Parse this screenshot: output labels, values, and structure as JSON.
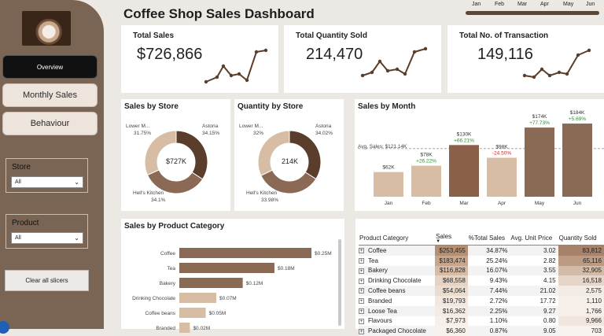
{
  "app": {
    "title": "Coffee Shop Sales Dashboard"
  },
  "sidebar": {
    "overview": "Overview",
    "monthly": "Monthly Sales",
    "behaviour": "Behaviour",
    "store_slicer": {
      "title": "Store",
      "value": "All"
    },
    "product_slicer": {
      "title": "Product",
      "value": "All"
    },
    "clear": "Clear all slicers"
  },
  "timeline": {
    "months": [
      "Jan",
      "Feb",
      "Mar",
      "Apr",
      "May",
      "Jun"
    ]
  },
  "kpis": [
    {
      "label": "Total Sales",
      "value": "$726,866"
    },
    {
      "label": "Total Quantity Sold",
      "value": "214,470"
    },
    {
      "label": "Total No. of Transaction",
      "value": "149,116"
    }
  ],
  "sales_by_store": {
    "title": "Sales by Store",
    "center": "$727K",
    "labels": {
      "lower": "Lower M...",
      "lower_pct": "31.75%",
      "astoria": "Astoria",
      "astoria_pct": "34.15%",
      "hells": "Hell's Kitchen",
      "hells_pct": "34.1%"
    }
  },
  "qty_by_store": {
    "title": "Quantity by Store",
    "center": "214K",
    "labels": {
      "lower": "Lower M...",
      "lower_pct": "32%",
      "astoria": "Astoria",
      "astoria_pct": "34.02%",
      "hells": "Hell's Kitchen",
      "hells_pct": "33.98%"
    }
  },
  "sales_by_month": {
    "title": "Sales by Month",
    "avg_label": "Avg. Sales: $121.14K"
  },
  "product_category": {
    "title": "Sales by Product Category"
  },
  "table": {
    "headers": [
      "Product Category",
      "Sales",
      "%Total Sales",
      "Avg. Unit Price",
      "Quantity Sold"
    ],
    "rows": [
      [
        "Coffee",
        "$253,455",
        "34.87%",
        "3.02",
        "83,812"
      ],
      [
        "Tea",
        "$183,474",
        "25.24%",
        "2.82",
        "65,116"
      ],
      [
        "Bakery",
        "$116,828",
        "16.07%",
        "3.55",
        "32,905"
      ],
      [
        "Drinking Chocolate",
        "$68,558",
        "9.43%",
        "4.15",
        "16,518"
      ],
      [
        "Coffee beans",
        "$54,064",
        "7.44%",
        "21.02",
        "2,575"
      ],
      [
        "Branded",
        "$19,793",
        "2.72%",
        "17.72",
        "1,110"
      ],
      [
        "Loose Tea",
        "$16,362",
        "2.25%",
        "9.27",
        "1,766"
      ],
      [
        "Flavours",
        "$7,973",
        "1.10%",
        "0.80",
        "9,966"
      ],
      [
        "Packaged Chocolate",
        "$6,360",
        "0.87%",
        "9.05",
        "703"
      ]
    ]
  },
  "colors": {
    "dark": "#5a3e2b",
    "mid": "#8a6a55",
    "light": "#d8bda5",
    "green": "#2e8b2e",
    "red": "#cc2222"
  },
  "chart_data": [
    {
      "type": "bar",
      "title": "Sales by Month",
      "categories": [
        "Jan",
        "Feb",
        "Mar",
        "Apr",
        "May",
        "Jun"
      ],
      "values": [
        62,
        78,
        130,
        98,
        174,
        184
      ],
      "labels": [
        "$62K",
        "$78K",
        "$130K",
        "$98K",
        "$174K",
        "$184K"
      ],
      "changes": [
        "",
        "+26.22%",
        "+66.21%",
        "-24.50%",
        "+77.73%",
        "+5.69%"
      ],
      "average": 121.14,
      "ylim": [
        0,
        190
      ]
    },
    {
      "type": "bar",
      "title": "Sales by Product Category",
      "categories": [
        "Coffee",
        "Tea",
        "Bakery",
        "Drinking Chocolate",
        "Coffee beans",
        "Branded"
      ],
      "values": [
        0.25,
        0.18,
        0.12,
        0.07,
        0.05,
        0.02
      ],
      "labels": [
        "$0.25M",
        "$0.18M",
        "$0.12M",
        "$0.07M",
        "$0.05M",
        "$0.02M"
      ]
    },
    {
      "type": "pie",
      "title": "Sales by Store",
      "categories": [
        "Astoria",
        "Hell's Kitchen",
        "Lower M..."
      ],
      "values": [
        34.15,
        34.1,
        31.75
      ]
    },
    {
      "type": "pie",
      "title": "Quantity by Store",
      "categories": [
        "Astoria",
        "Hell's Kitchen",
        "Lower M..."
      ],
      "values": [
        34.02,
        33.98,
        32
      ]
    }
  ]
}
